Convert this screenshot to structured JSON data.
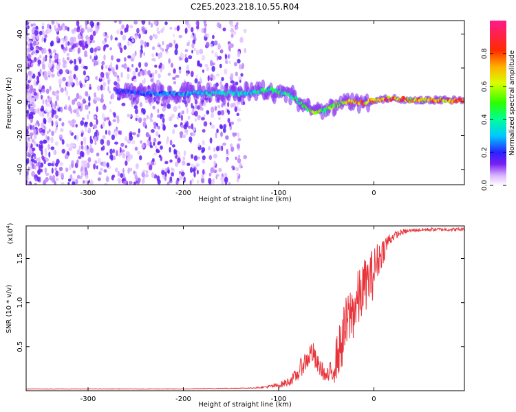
{
  "title": "C2E5.2023.218.10.55.R04",
  "chart_data": [
    {
      "type": "heatmap",
      "xlabel": "Height of straight line (km)",
      "ylabel": "Frequency (Hz)",
      "xlim": [
        -365,
        95
      ],
      "ylim": [
        -49,
        48
      ],
      "xticks": [
        -300,
        -200,
        -100,
        0
      ],
      "yticks": [
        -40,
        -20,
        0,
        20,
        40
      ],
      "ridge": {
        "x": [
          -260,
          -240,
          -200,
          -180,
          -150,
          -130,
          -110,
          -90,
          -80,
          -70,
          -60,
          -50,
          -40,
          -30,
          -20,
          -10,
          0,
          20,
          40,
          60,
          80,
          95
        ],
        "freq": [
          6,
          5,
          5,
          5,
          5,
          5,
          7,
          5,
          1,
          -4,
          -6,
          -5,
          -2,
          0,
          0,
          -1,
          1,
          2,
          1,
          1,
          1,
          1
        ],
        "amplitude": [
          0.25,
          0.3,
          0.35,
          0.4,
          0.45,
          0.45,
          0.5,
          0.55,
          0.5,
          0.55,
          0.7,
          0.6,
          0.65,
          0.75,
          0.85,
          0.9,
          0.9,
          0.9,
          0.9,
          0.9,
          0.9,
          0.9
        ]
      },
      "colorbar": {
        "label": "Normalized spectral amplitude",
        "range": [
          0,
          1
        ],
        "ticks": [
          "0.0",
          "0.2",
          "0.4",
          "0.6",
          "0.8"
        ],
        "tick_values": [
          0,
          0.2,
          0.4,
          0.6,
          0.8
        ]
      }
    },
    {
      "type": "line",
      "xlabel": "Height of straight line (km)",
      "ylabel": "SNR (10 * v/v)",
      "scale_label": "(x10",
      "scale_exp": "4",
      "scale_close": ")",
      "xlim": [
        -365,
        95
      ],
      "ylim": [
        0,
        1.87
      ],
      "xticks": [
        -300,
        -200,
        -100,
        0
      ],
      "yticks": [
        0.5,
        1.0,
        1.5
      ],
      "ytick_labels": [
        "0.5",
        "1.0",
        "1.5"
      ],
      "series": [
        {
          "name": "SNR",
          "color": "#e8333a",
          "x": [
            -365,
            -300,
            -200,
            -130,
            -115,
            -100,
            -90,
            -80,
            -75,
            -70,
            -65,
            -60,
            -55,
            -50,
            -45,
            -40,
            -35,
            -30,
            -25,
            -20,
            -15,
            -10,
            -5,
            0,
            5,
            10,
            15,
            20,
            30,
            40,
            60,
            80,
            95
          ],
          "y": [
            0.02,
            0.02,
            0.02,
            0.03,
            0.04,
            0.06,
            0.1,
            0.18,
            0.3,
            0.35,
            0.45,
            0.3,
            0.25,
            0.15,
            0.2,
            0.35,
            0.5,
            0.7,
            0.85,
            0.95,
            1.05,
            1.2,
            1.25,
            1.35,
            1.5,
            1.6,
            1.7,
            1.75,
            1.8,
            1.82,
            1.83,
            1.83,
            1.83
          ],
          "noise": [
            0.003,
            0.003,
            0.003,
            0.004,
            0.01,
            0.03,
            0.05,
            0.08,
            0.12,
            0.12,
            0.15,
            0.12,
            0.1,
            0.08,
            0.15,
            0.25,
            0.3,
            0.35,
            0.35,
            0.35,
            0.35,
            0.3,
            0.3,
            0.3,
            0.2,
            0.15,
            0.1,
            0.05,
            0.03,
            0.02,
            0.02,
            0.02,
            0.02
          ]
        }
      ]
    }
  ],
  "colors": {
    "line": "#e8333a",
    "scatter": "#7a1ff0"
  }
}
